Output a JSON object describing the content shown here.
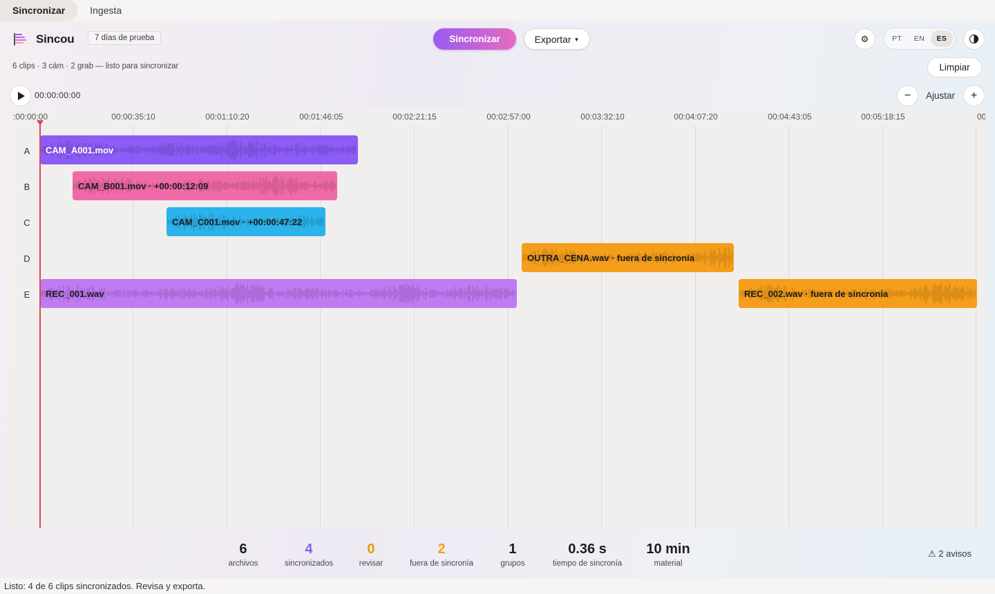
{
  "tabs": [
    {
      "label": "Sincronizar",
      "active": true
    },
    {
      "label": "Ingesta",
      "active": false
    }
  ],
  "header": {
    "brand": "Sincou",
    "trial_badge": "7 días de prueba",
    "sync_label": "Sincronizar",
    "export_label": "Exportar",
    "settings_icon": "gear-icon",
    "languages": [
      "PT",
      "EN",
      "ES"
    ],
    "active_language": "ES",
    "theme_icon": "contrast-icon",
    "summary": "6 clips · 3 cám · 2 grab — listo para sincronizar",
    "clear_label": "Limpiar"
  },
  "transport": {
    "timecode": "00:00:00:00",
    "zoom_out": "−",
    "fit_label": "Ajustar",
    "zoom_in": "+"
  },
  "timeline": {
    "ticks": [
      ":00:00:00",
      "00:00:35:10",
      "00:01:10:20",
      "00:01:46:05",
      "00:02:21:15",
      "00:02:57:00",
      "00:03:32:10",
      "00:04:07:20",
      "00:04:43:05",
      "00:05:18:15",
      "00:0"
    ],
    "tracks": [
      "A",
      "B",
      "C",
      "D",
      "E"
    ],
    "clips": [
      {
        "track": "A",
        "label": "CAM_A001.mov",
        "color": "#8b5cf6",
        "text_color": "#ffffff"
      },
      {
        "track": "B",
        "label": "CAM_B001.mov  ·  +00:00:12:09",
        "color": "#f06aa8",
        "text_color": "#1d1d1f"
      },
      {
        "track": "C",
        "label": "CAM_C001.mov  ·  +00:00:47:22",
        "color": "#2bb3ec",
        "text_color": "#1d1d1f"
      },
      {
        "track": "D",
        "label": "OUTRA_CENA.wav  ·  fuera de sincronía",
        "color": "#f59e1b",
        "text_color": "#1d1d1f"
      },
      {
        "track": "E",
        "label": "REC_001.wav",
        "color": "#c07af2",
        "text_color": "#1d1d1f"
      },
      {
        "track": "E",
        "label": "REC_002.wav  ·  fuera de sincronía",
        "color": "#f59e1b",
        "text_color": "#1d1d1f"
      }
    ]
  },
  "stats": [
    {
      "value": "6",
      "label": "archivos",
      "color": "#1d1d1f"
    },
    {
      "value": "4",
      "label": "sincronizados",
      "color": "#8b5cf6"
    },
    {
      "value": "0",
      "label": "revisar",
      "color": "#e0a100"
    },
    {
      "value": "2",
      "label": "fuera de sincronía",
      "color": "#f59e1b"
    },
    {
      "value": "1",
      "label": "grupos",
      "color": "#1d1d1f"
    },
    {
      "value": "0.36 s",
      "label": "tiempo de sincronía",
      "color": "#1d1d1f"
    },
    {
      "value": "10 min",
      "label": "material",
      "color": "#1d1d1f"
    }
  ],
  "warnings": "⚠ 2 avisos",
  "status": "Listo: 4 de 6 clips sincronizados. Revisa y exporta."
}
